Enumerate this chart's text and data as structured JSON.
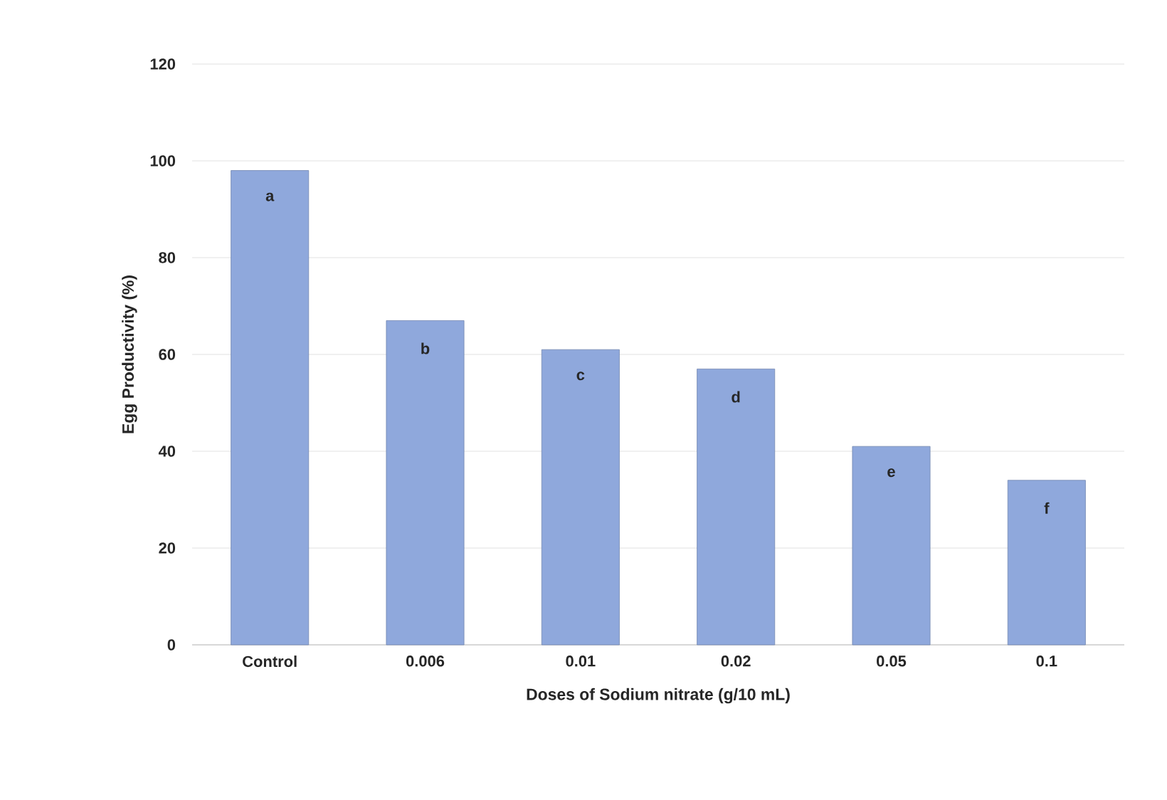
{
  "chart_data": {
    "type": "bar",
    "xlabel": "Doses of Sodium nitrate (g/10 mL)",
    "ylabel": "Egg Productivity (%)",
    "categories": [
      "Control",
      "0.006",
      "0.01",
      "0.02",
      "0.05",
      "0.1"
    ],
    "values": [
      98,
      67,
      61,
      57,
      41,
      34
    ],
    "color": "#8fa8dc",
    "ylim": [
      0,
      120
    ],
    "yticks": [
      0,
      20,
      40,
      60,
      80,
      100,
      120
    ],
    "grid": "y",
    "annotations": [
      "a",
      "b",
      "c",
      "d",
      "e",
      "f"
    ]
  }
}
